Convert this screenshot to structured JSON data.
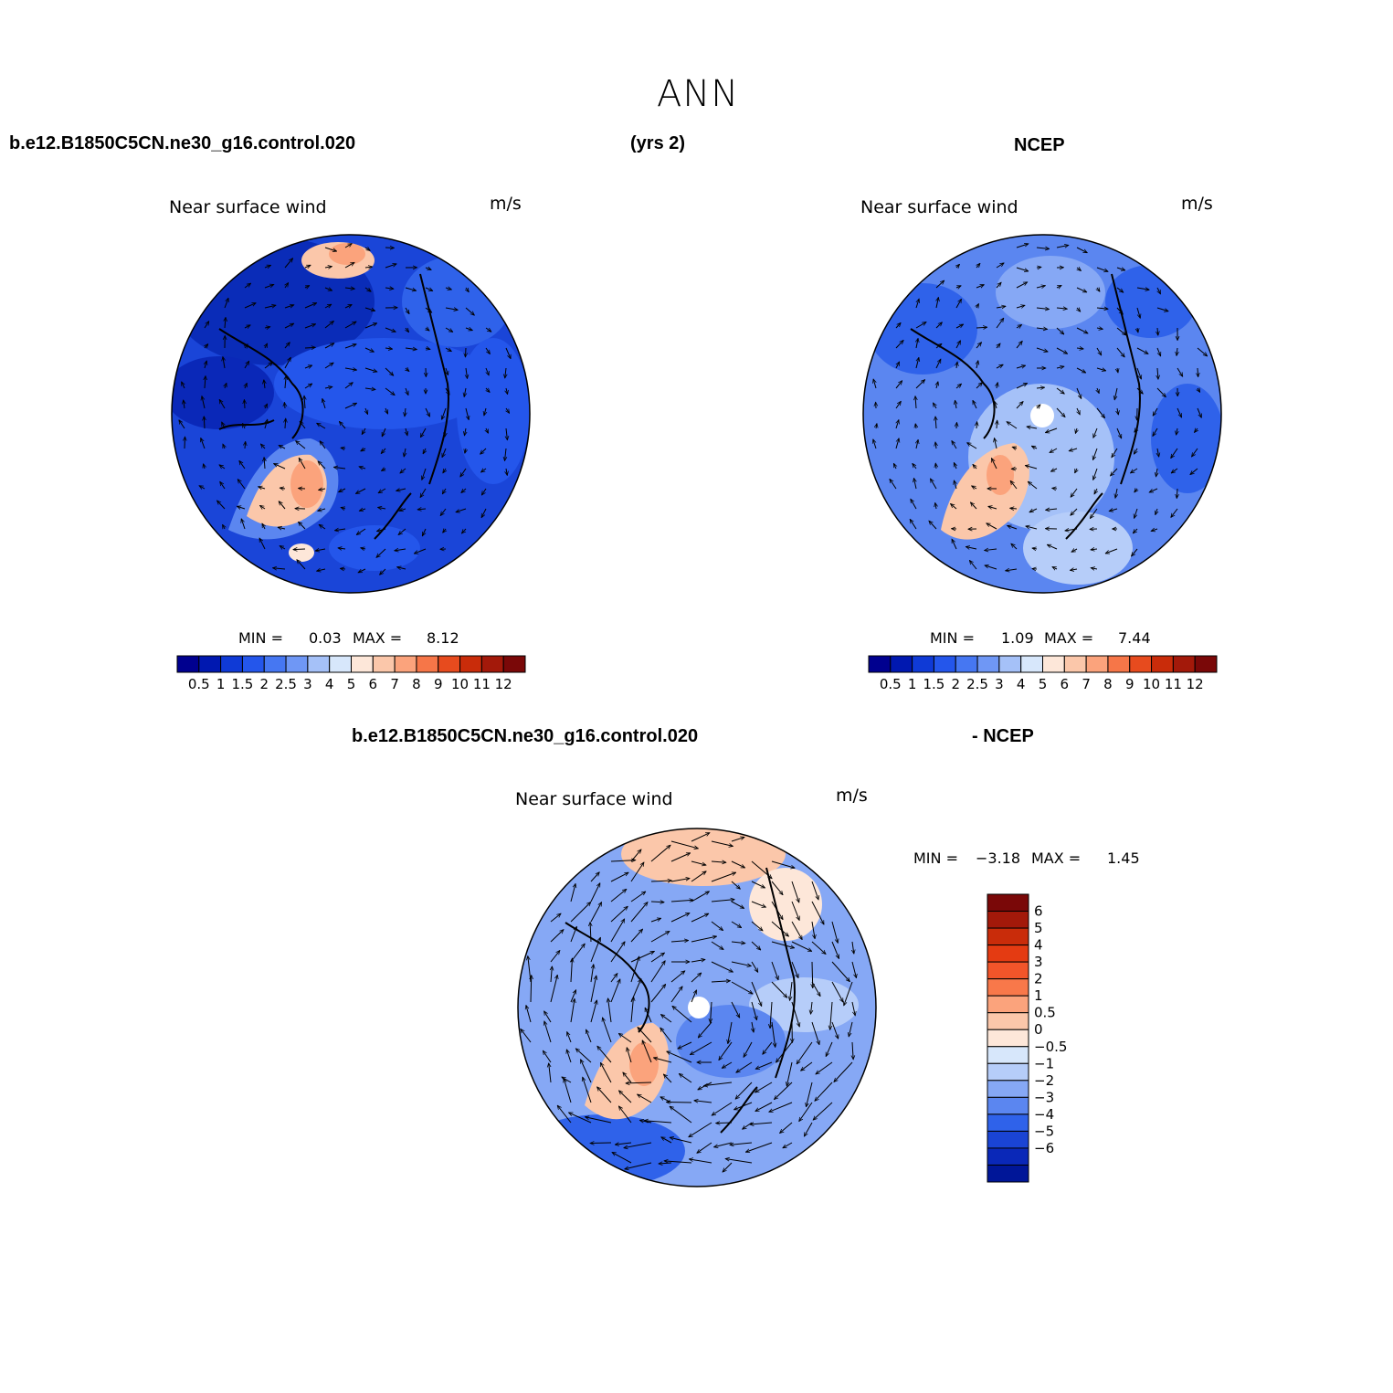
{
  "title": "ANN",
  "header": {
    "case_name": "b.e12.B1850C5CN.ne30_g16.control.020",
    "years": "(yrs 2)",
    "obs_name": "NCEP"
  },
  "diff_header": {
    "case_name": "b.e12.B1850C5CN.ne30_g16.control.020",
    "suffix": "- NCEP"
  },
  "panels": {
    "model": {
      "variable": "Near surface wind",
      "units": "m/s",
      "min_label": "MIN =",
      "min_value": "0.03",
      "max_label": "MAX =",
      "max_value": "8.12"
    },
    "obs": {
      "variable": "Near surface wind",
      "units": "m/s",
      "min_label": "MIN =",
      "min_value": "1.09",
      "max_label": "MAX =",
      "max_value": "7.44"
    },
    "diff": {
      "variable": "Near surface wind",
      "units": "m/s",
      "min_label": "MIN =",
      "min_value": "−3.18",
      "max_label": "MAX =",
      "max_value": "1.45"
    }
  },
  "colorbars": {
    "field": {
      "colors": [
        "#00008f",
        "#0018b0",
        "#0f3ad6",
        "#2456eb",
        "#4677f2",
        "#6f97f5",
        "#a5c1f8",
        "#d7e7fb",
        "#fde7d9",
        "#fbc7aa",
        "#fba37c",
        "#f67648",
        "#e74b1e",
        "#c92c0a",
        "#a3190a",
        "#7a0808"
      ],
      "tick_labels": [
        "0.5",
        "1",
        "1.5",
        "2",
        "2.5",
        "3",
        "4",
        "5",
        "6",
        "7",
        "8",
        "9",
        "10",
        "11",
        "12"
      ]
    },
    "diff": {
      "colors": [
        "#7a0808",
        "#a3190a",
        "#c92c0a",
        "#e43b12",
        "#f2552a",
        "#f8784a",
        "#fba37c",
        "#fbc7aa",
        "#fde7d9",
        "#d7e7fb",
        "#b6cdf9",
        "#86a8f5",
        "#5b86f0",
        "#2f62ea",
        "#1a44d4",
        "#0a28b8",
        "#001698"
      ],
      "tick_labels": [
        "6",
        "5",
        "4",
        "3",
        "2",
        "1",
        "0.5",
        "0",
        "−0.5",
        "−1",
        "−2",
        "−3",
        "−4",
        "−5",
        "−6"
      ]
    }
  }
}
